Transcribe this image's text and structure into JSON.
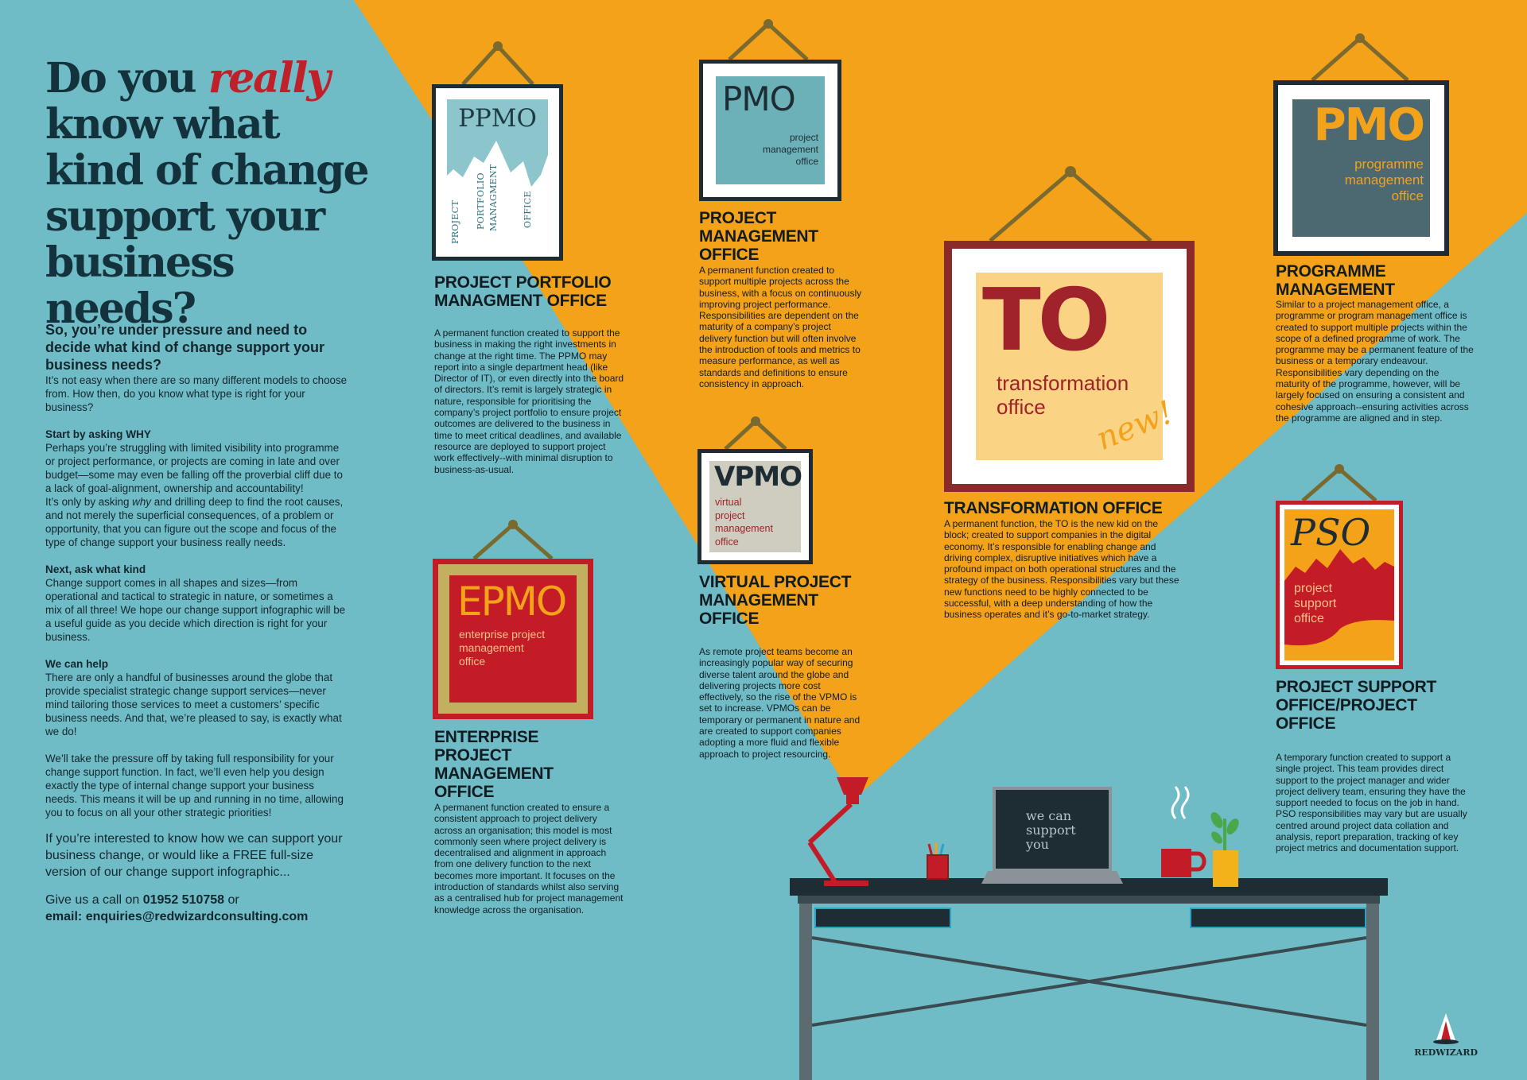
{
  "headline": {
    "line1_a": "Do you ",
    "line1_highlight": "really",
    "line2": "know what",
    "line3": "kind of change",
    "line4": "support your",
    "line5": "business needs?"
  },
  "left": {
    "intro_title": "So, you’re under pressure and need to decide what kind of change support your business needs?",
    "intro_text": "It’s not easy when there are so many different models to choose from. How then, do you know what type is right for your business?",
    "why_heading": "Start by asking WHY",
    "why_text_1": "Perhaps you’re struggling with limited visibility into programme or project performance, or projects are coming in late and over budget—some may even be falling off the proverbial cliff due to a lack of goal-alignment, ownership and accountability!",
    "why_text_2a": "It’s only by asking ",
    "why_text_2_em": "why",
    "why_text_2b": " and drilling deep to find the root causes, and not merely the superficial consequences, of a problem or opportunity, that you can figure out the scope and focus of the type of change support your business really needs.",
    "kind_heading": "Next, ask what kind",
    "kind_text": "Change support comes in all shapes and sizes—from operational and tactical to strategic in nature, or sometimes a mix of all three! We hope our change support infographic will be a useful guide as you decide which direction is right for your business.",
    "help_heading": "We can help",
    "help_text_1": "There are only a handful of businesses around the globe that provide specialist strategic change support services—never mind tailoring those services to meet a customers’ specific business needs. And that, we’re pleased to say, is exactly what we do!",
    "help_text_2": "We’ll take the pressure off by taking full responsibility for your change support function. In fact, we’ll even help you design exactly the type of internal change support your business needs. This means it will be up and running in no time, allowing you to focus on all your other strategic priorities!",
    "interest_text": "If you’re interested to know how we can support your business change, or would like a FREE full-size version of our change support infographic...",
    "call_prefix": "Give us a call on ",
    "phone": "01952 510758",
    "call_suffix": " or",
    "email": "email: enquiries@redwizardconsulting.com"
  },
  "ppmo": {
    "frame_title": "PPMO",
    "rot1": "PROJECT",
    "rot2": "PORTFOLIO",
    "rot3": "MANAGMENT",
    "rot4": "OFFICE",
    "heading": "PROJECT PORTFOLIO MANAGMENT OFFICE",
    "body": "A permanent function created to support the business in making the right investments in change at the right time. The PPMO may report into a single department head (like Director of IT), or even directly into the board of directors. It’s remit is largely strategic in nature, responsible for prioritising the company’s project portfolio to ensure project outcomes are delivered to the business in time to meet critical deadlines, and available resource are deployed to support project work effectively--with minimal disruption to business-as-usual."
  },
  "pmo_project": {
    "frame_title": "PMO",
    "frame_sub1": "project",
    "frame_sub2": "management",
    "frame_sub3": "office",
    "heading": "PROJECT MANAGEMENT OFFICE",
    "body": "A permanent function created to support multiple projects across the business, with a focus on continuously improving project performance. Responsibilities are dependent on the maturity of a company’s project delivery function but will often involve the introduction of tools and metrics to measure performance, as well as standards and definitions to ensure consistency in approach."
  },
  "pmo_programme": {
    "frame_title": "PMO",
    "frame_sub1": "programme",
    "frame_sub2": "management",
    "frame_sub3": "office",
    "heading": "PROGRAMME MANAGEMENT",
    "body": "Similar to a project management office, a programme or program management office is created to support multiple projects within the scope of a defined programme of work. The programme may be a permanent feature of the business or a temporary endeavour. Responsibilities vary depending on the maturity of the programme, however, will be largely focused on ensuring a consistent and cohesive approach--ensuring activities across the programme are aligned and in step."
  },
  "to": {
    "frame_title": "TO",
    "frame_sub1": "transformation",
    "frame_sub2": "office",
    "badge": "new!",
    "heading": "TRANSFORMATION OFFICE",
    "body": "A permanent function, the TO is the new kid on the block; created to support companies in the digital economy.  It’s responsible for enabling change and driving complex, disruptive initiatives which have a profound impact on both operational structures and the strategy of the business. Responsibilities vary but these new functions need to be highly connected to be successful, with a deep understanding of how the business operates and it’s go-to-market strategy."
  },
  "vpmo": {
    "frame_title": "VPMO",
    "frame_sub1": "virtual",
    "frame_sub2": "project",
    "frame_sub3": "management",
    "frame_sub4": "office",
    "heading": "VIRTUAL PROJECT MANAGEMENT OFFICE",
    "body": "As remote project teams become an increasingly popular way of securing diverse talent around the globe and delivering projects more cost effectively, so the rise of the VPMO is set to increase.  VPMOs can be temporary or permanent in nature and are created to support companies adopting a more fluid and flexible approach to project resourcing."
  },
  "epmo": {
    "frame_title": "EPMO",
    "frame_sub1": "enterprise project",
    "frame_sub2": "management",
    "frame_sub3": "office",
    "heading": "ENTERPRISE PROJECT MANAGEMENT OFFICE",
    "body": "A permanent function created to ensure a consistent approach to project delivery across an organisation; this model is most commonly seen where project delivery is decentralised and alignment in approach from one delivery function to the next becomes more important. It focuses on the introduction of standards whilst also serving as a centralised hub for project management knowledge across the organisation."
  },
  "pso": {
    "frame_title": "PSO",
    "frame_sub1": "project",
    "frame_sub2": "support",
    "frame_sub3": "office",
    "heading": "PROJECT SUPPORT OFFICE/PROJECT OFFICE",
    "body": "A temporary function created to support a single project. This team provides direct support to the project manager and wider project delivery team, ensuring they have the support needed to focus on the job in hand. PSO responsibilities may vary but are usually centred around project data collation and analysis, report preparation, tracking of key project metrics and documentation support."
  },
  "laptop": {
    "line1": "we can",
    "line2": "support",
    "line3": "you"
  },
  "logo": {
    "text": "REDWIZARD"
  },
  "colors": {
    "background": "#6fbcc6",
    "spotlight": "#f3a21a",
    "accent_red": "#c0202a",
    "dark": "#14323c"
  }
}
